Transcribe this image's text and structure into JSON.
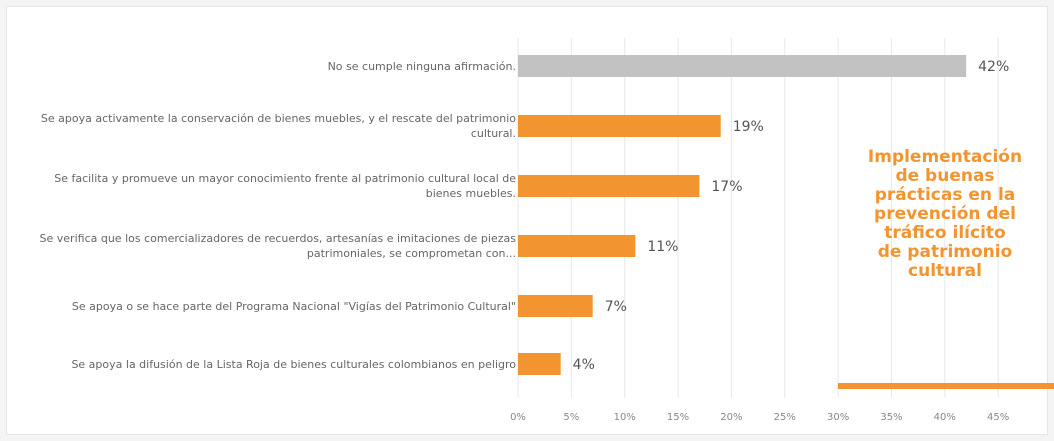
{
  "chart_data": {
    "type": "bar",
    "orientation": "horizontal",
    "categories": [
      "No se cumple ninguna afirmación.",
      "Se apoya activamente la conservación de bienes muebles, y el rescate del patrimonio cultural.",
      "Se facilita y promueve un mayor conocimiento frente al patrimonio cultural local de bienes muebles.",
      "Se verifica que los comercializadores de recuerdos, artesanías e imitaciones de piezas patrimoniales, se comprometan con...",
      "Se apoya o se hace parte del Programa Nacional \"Vigías del Patrimonio Cultural\"",
      "Se apoya la difusión de la Lista Roja de bienes culturales colombianos en peligro"
    ],
    "values": [
      42,
      19,
      17,
      11,
      7,
      4
    ],
    "data_labels": [
      "42%",
      "19%",
      "17%",
      "11%",
      "7%",
      "4%"
    ],
    "bar_colors": [
      "#c2c2c2",
      "#f29530",
      "#f29530",
      "#f29530",
      "#f29530",
      "#f29530"
    ],
    "x_ticks": [
      0,
      5,
      10,
      15,
      20,
      25,
      30,
      35,
      40,
      45
    ],
    "x_tick_labels": [
      "0%",
      "5%",
      "10%",
      "15%",
      "20%",
      "25%",
      "30%",
      "35%",
      "40%",
      "45%"
    ],
    "xlim": [
      0,
      45
    ],
    "grid": true,
    "title": "",
    "xlabel": "",
    "ylabel": ""
  },
  "side_title": "Implementación\nde buenas\nprácticas en la\nprevención del\ntráfico ilícito\nde patrimonio\ncultural",
  "colors": {
    "accent": "#f29530",
    "neutral_bar": "#c2c2c2",
    "label_text": "#666666",
    "gridline": "#e8e8e8"
  }
}
